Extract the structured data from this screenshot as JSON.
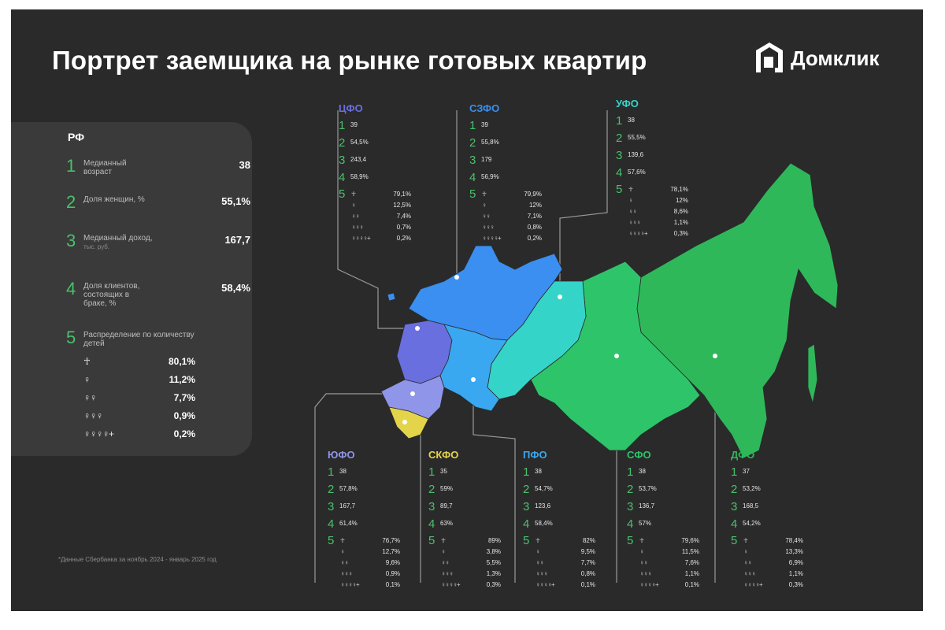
{
  "title": "Портрет заемщика на рынке готовых квартир",
  "logo": {
    "text": "Домклик",
    "icon": "domclick-house-icon"
  },
  "colors": {
    "background": "#2a2a2b",
    "panel": "#3a3a3b",
    "accent_number": "#49c169"
  },
  "rf": {
    "title": "РФ",
    "metrics": [
      {
        "num": "1",
        "label": "Медианный возраст",
        "sub": "",
        "value": "38"
      },
      {
        "num": "2",
        "label": "Доля женщин, %",
        "sub": "",
        "value": "55,1%"
      },
      {
        "num": "3",
        "label": "Медианный доход,",
        "sub": "тыс. руб.",
        "value": "167,7"
      },
      {
        "num": "4",
        "label": "Доля клиентов, состоящих в браке, %",
        "sub": "",
        "value": "58,4%"
      }
    ],
    "children": {
      "num": "5",
      "label": "Распределение по количеству детей",
      "rows": [
        {
          "icon": "0-children-icon",
          "value": "80,1%"
        },
        {
          "icon": "1-child-icon",
          "value": "11,2%"
        },
        {
          "icon": "2-children-icon",
          "value": "7,7%"
        },
        {
          "icon": "3-children-icon",
          "value": "0,9%"
        },
        {
          "icon": "4plus-children-icon",
          "value": "0,2%"
        }
      ]
    }
  },
  "footnote": "*Данные Сбербанка за ноябрь 2024 - январь 2025 год",
  "districts": [
    {
      "key": "cfo",
      "name": "ЦФО",
      "color": "#6a6fe0",
      "values": [
        "39",
        "54,5%",
        "243,4",
        "58,9%"
      ],
      "children": [
        "79,1%",
        "12,5%",
        "7,4%",
        "0,7%",
        "0,2%"
      ]
    },
    {
      "key": "szfo",
      "name": "СЗФО",
      "color": "#3a8ff0",
      "values": [
        "39",
        "55,8%",
        "179",
        "56,9%"
      ],
      "children": [
        "79,9%",
        "12%",
        "7,1%",
        "0,8%",
        "0,2%"
      ]
    },
    {
      "key": "ufo",
      "name": "УФО",
      "color": "#35d4c8",
      "values": [
        "38",
        "55,5%",
        "139,6",
        "57,6%"
      ],
      "children": [
        "78,1%",
        "12%",
        "8,6%",
        "1,1%",
        "0,3%"
      ]
    },
    {
      "key": "yufo",
      "name": "ЮФО",
      "color": "#8f95e8",
      "values": [
        "38",
        "57,8%",
        "167,7",
        "61,4%"
      ],
      "children": [
        "76,7%",
        "12,7%",
        "9,6%",
        "0,9%",
        "0,1%"
      ]
    },
    {
      "key": "skfo",
      "name": "СКФО",
      "color": "#e4d44a",
      "values": [
        "35",
        "59%",
        "89,7",
        "63%"
      ],
      "children": [
        "89%",
        "3,8%",
        "5,5%",
        "1,3%",
        "0,3%"
      ]
    },
    {
      "key": "pfo",
      "name": "ПФО",
      "color": "#3aa8f0",
      "values": [
        "38",
        "54,7%",
        "123,6",
        "58,4%"
      ],
      "children": [
        "82%",
        "9,5%",
        "7,7%",
        "0,8%",
        "0,1%"
      ]
    },
    {
      "key": "sfo",
      "name": "СФО",
      "color": "#2ec46a",
      "values": [
        "38",
        "53,7%",
        "136,7",
        "57%"
      ],
      "children": [
        "79,6%",
        "11,5%",
        "7,6%",
        "1,1%",
        "0,1%"
      ]
    },
    {
      "key": "dfo",
      "name": "ДФО",
      "color": "#2fb85a",
      "values": [
        "37",
        "53,2%",
        "168,5",
        "54,2%"
      ],
      "children": [
        "78,4%",
        "13,3%",
        "6,9%",
        "1,1%",
        "0,3%"
      ]
    }
  ],
  "child_icons": [
    "☥",
    "♀",
    "♀♀",
    "♀♀♀",
    "♀♀♀♀+"
  ]
}
